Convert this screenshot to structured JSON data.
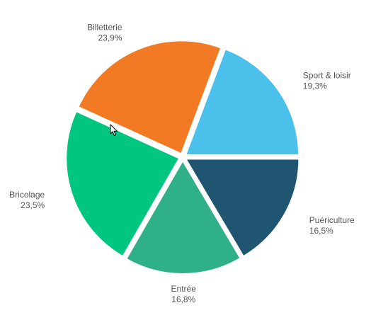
{
  "chart_data": {
    "type": "pie",
    "title": "",
    "slices": [
      {
        "label": "Puériculture",
        "value": 16.5,
        "value_label": "16,5%",
        "color": "#1f5570"
      },
      {
        "label": "Entrée",
        "value": 16.8,
        "value_label": "16,8%",
        "color": "#2fb088"
      },
      {
        "label": "Bricolage",
        "value": 23.5,
        "value_label": "23,5%",
        "color": "#00c67f"
      },
      {
        "label": "Billetterie",
        "value": 23.9,
        "value_label": "23,9%",
        "color": "#f27a25"
      },
      {
        "label": "Sport & loisir",
        "value": 19.3,
        "value_label": "19,3%",
        "color": "#4bc0ea"
      }
    ],
    "start_angle_deg": 0,
    "direction": "clockwise",
    "exploded": true
  },
  "cursor": {
    "icon": "mouse-pointer-icon"
  }
}
